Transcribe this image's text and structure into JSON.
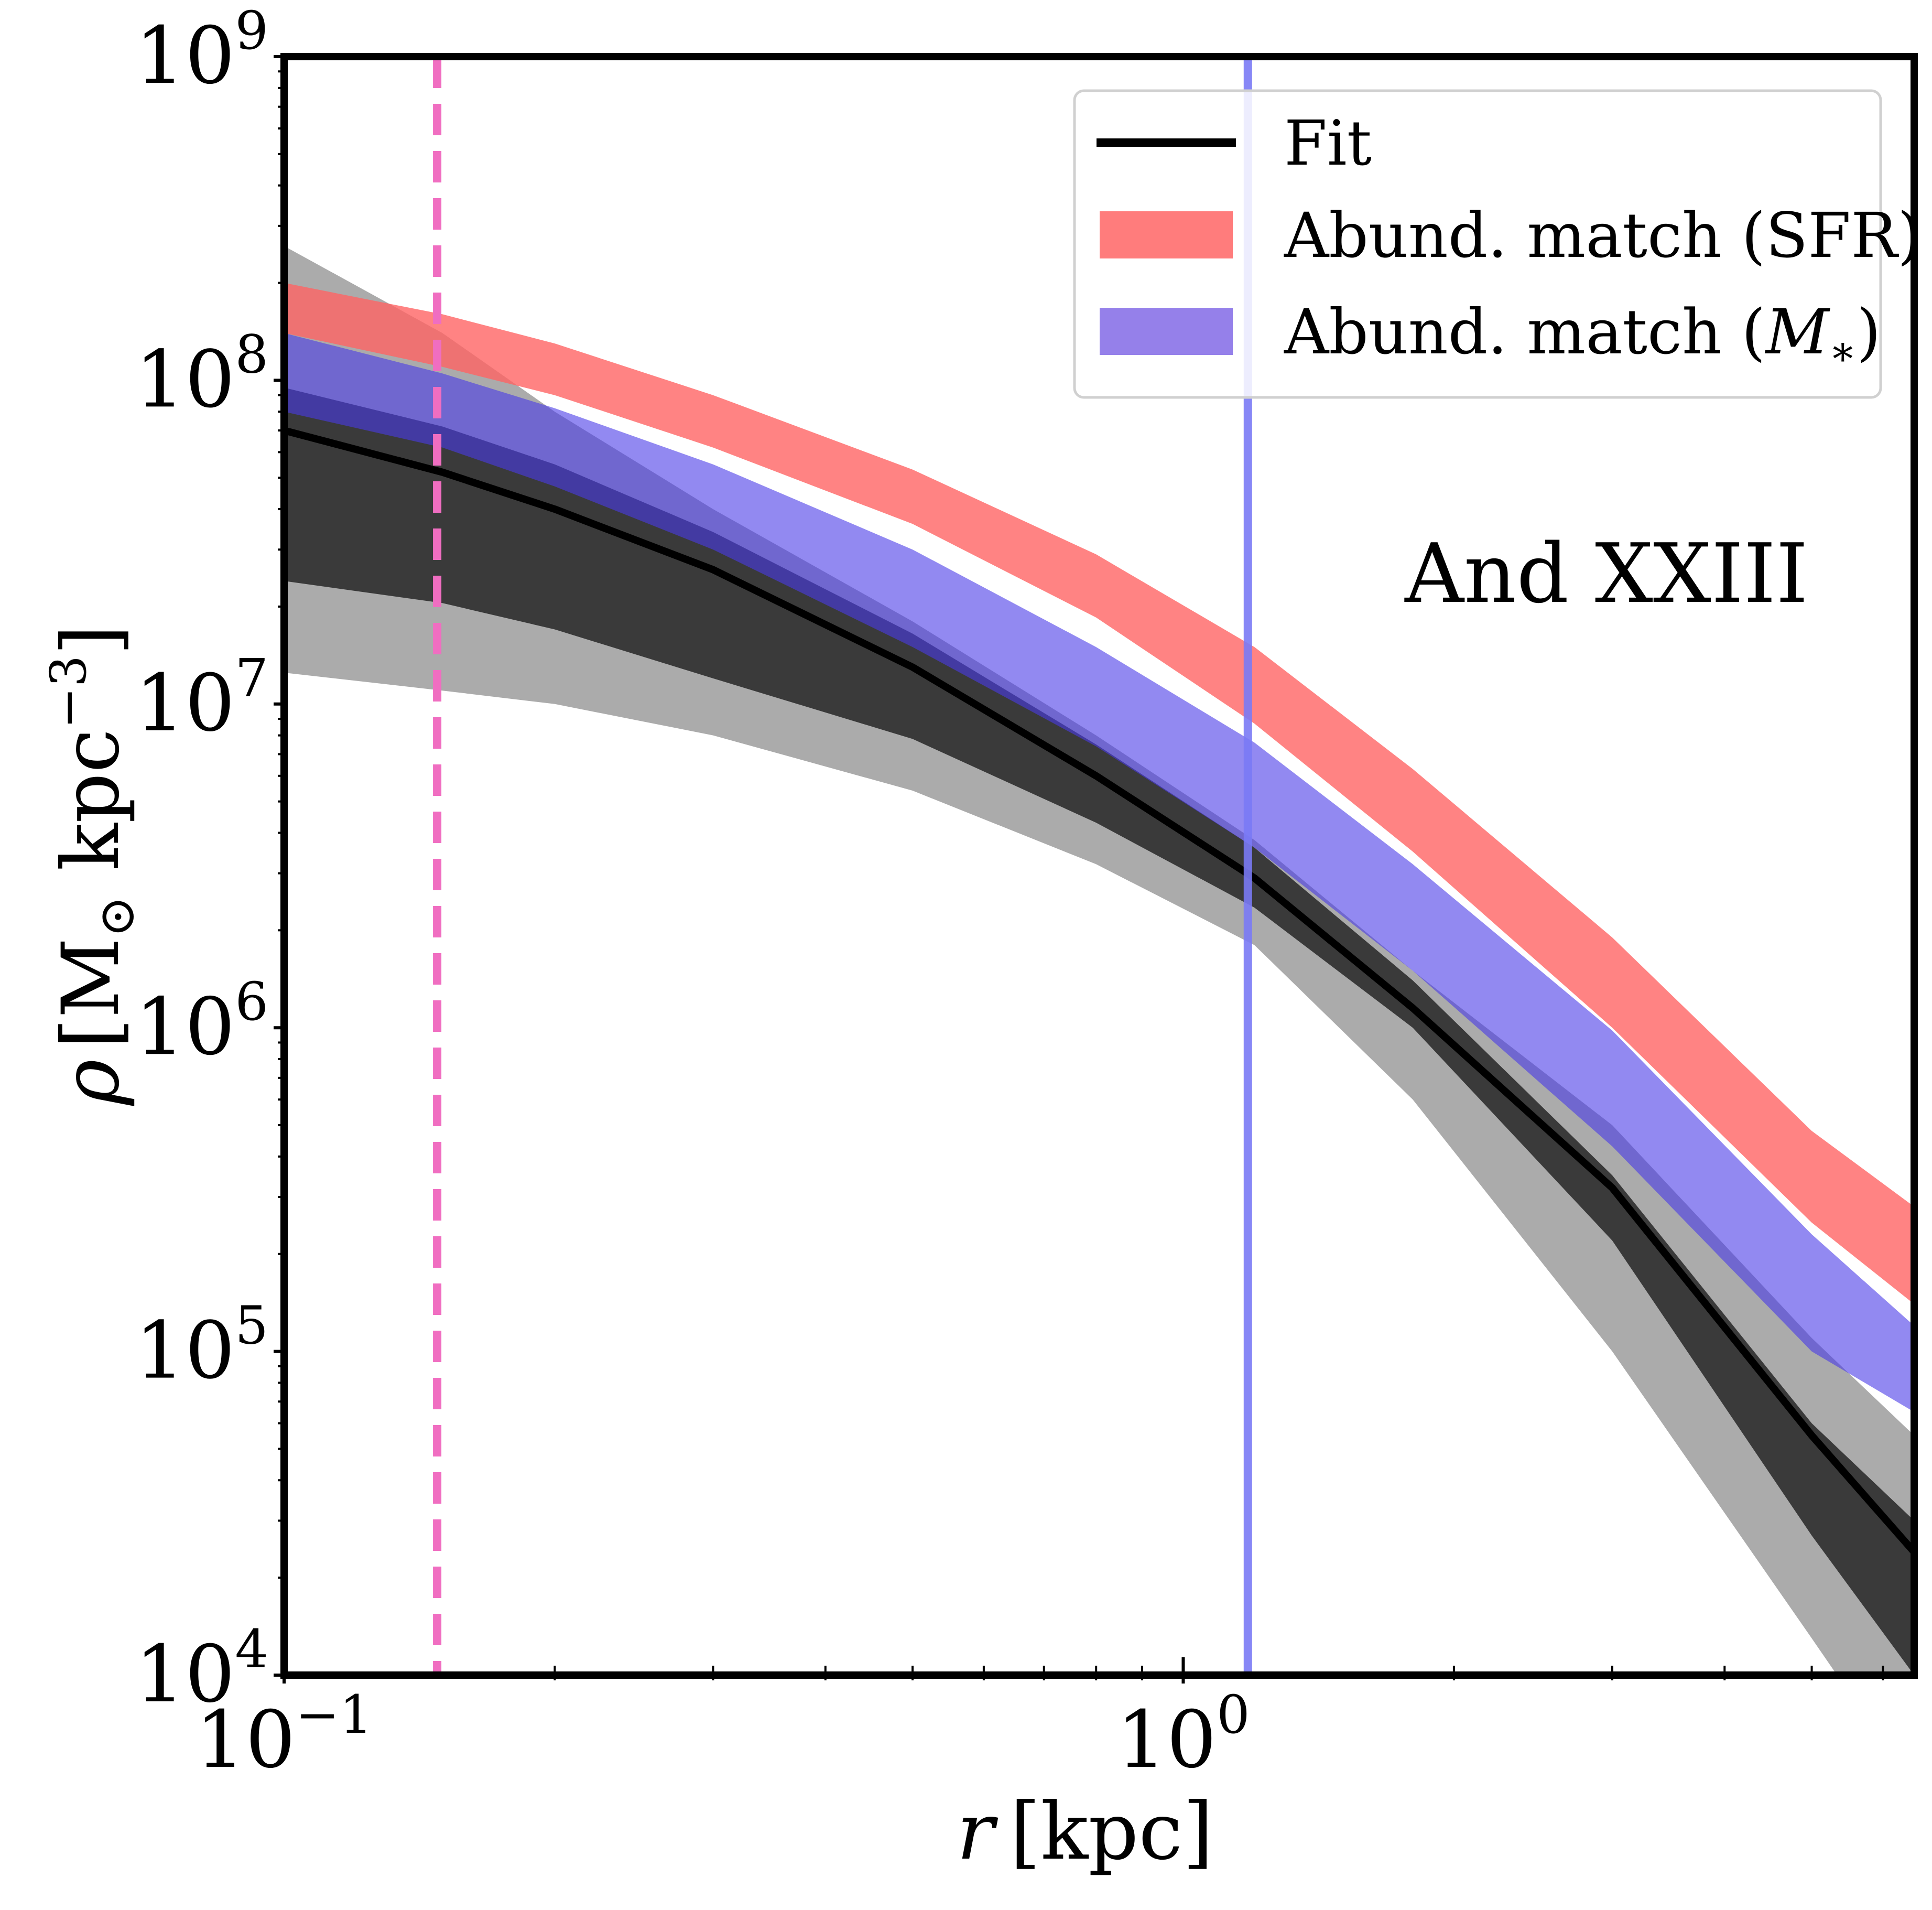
{
  "chart_data": {
    "type": "line",
    "annotation": "And XXIII",
    "xlabel": {
      "main": "r",
      "unit": "[kpc]"
    },
    "ylabel": {
      "main": "ρ",
      "unit": "[M",
      "unit_sub": "⊙",
      "unit_mid": " kpc",
      "unit_sup": "−3",
      "unit_end": "]"
    },
    "x_scale": "log",
    "y_scale": "log",
    "xlim": [
      0.1,
      6.5
    ],
    "ylim": [
      10000,
      1000000000
    ],
    "x_ticks": [
      {
        "value": 0.1,
        "base": "10",
        "exp": "−1"
      },
      {
        "value": 1,
        "base": "10",
        "exp": "0"
      }
    ],
    "y_ticks": [
      {
        "value": 10000,
        "base": "10",
        "exp": "4"
      },
      {
        "value": 100000,
        "base": "10",
        "exp": "5"
      },
      {
        "value": 1000000,
        "base": "10",
        "exp": "6"
      },
      {
        "value": 10000000,
        "base": "10",
        "exp": "7"
      },
      {
        "value": 100000000,
        "base": "10",
        "exp": "8"
      },
      {
        "value": 1000000000,
        "base": "10",
        "exp": "9"
      }
    ],
    "vertical_lines": [
      {
        "x": 0.148,
        "style": "dashed",
        "color": "#f06ec1"
      },
      {
        "x": 1.18,
        "style": "solid",
        "color": "#7a7af5"
      }
    ],
    "bands": [
      {
        "name": "fit-2sigma",
        "color": "#ababab",
        "x": [
          0.1,
          0.15,
          0.2,
          0.3,
          0.5,
          0.8,
          1.2,
          1.8,
          3,
          5,
          6.5
        ],
        "lower": [
          12500000,
          11000000,
          10000000,
          8000000,
          5400000,
          3200000,
          1800000,
          600000,
          100000,
          13000,
          4500
        ],
        "upper": [
          260000000,
          140000000,
          80000000,
          40000000,
          18000000,
          8000000,
          3800000,
          1500000,
          500000,
          110000,
          55000
        ]
      },
      {
        "name": "fit-1sigma",
        "color": "#3a3a3a",
        "x": [
          0.1,
          0.15,
          0.2,
          0.3,
          0.5,
          0.8,
          1.2,
          1.8,
          3,
          5,
          6.5
        ],
        "lower": [
          24000000,
          20500000,
          17000000,
          12000000,
          7800000,
          4300000,
          2350000,
          1000000,
          220000,
          27000,
          10000
        ],
        "upper": [
          95000000,
          72000000,
          55000000,
          34000000,
          16500000,
          7500000,
          3600000,
          1400000,
          350000,
          60000,
          30000
        ]
      },
      {
        "name": "Abund. match (SFR)",
        "color": "#ff6464",
        "opacity": 0.8,
        "x": [
          0.1,
          0.15,
          0.2,
          0.3,
          0.5,
          0.8,
          1.2,
          1.8,
          3,
          5,
          6.5
        ],
        "lower": [
          140000000,
          110000000,
          90000000,
          62000000,
          36000000,
          18500000,
          8700000,
          3500000,
          1000000,
          250000,
          140000
        ],
        "upper": [
          200000000,
          160000000,
          130000000,
          90000000,
          53000000,
          29000000,
          15000000,
          6300000,
          1900000,
          480000,
          280000
        ]
      },
      {
        "name": "Abund. match (M*)",
        "color": "#4a3ae8",
        "opacity": 0.6,
        "x": [
          0.1,
          0.15,
          0.2,
          0.3,
          0.5,
          0.8,
          1.2,
          1.8,
          3,
          5,
          6.5
        ],
        "lower": [
          80000000,
          62000000,
          47000000,
          30000000,
          15000000,
          7400000,
          3600000,
          1500000,
          430000,
          100000,
          65000
        ],
        "upper": [
          140000000,
          105000000,
          82000000,
          55000000,
          30000000,
          15000000,
          7600000,
          3200000,
          980000,
          230000,
          120000
        ]
      }
    ],
    "series": [
      {
        "name": "Fit",
        "color": "#000000",
        "x": [
          0.1,
          0.15,
          0.2,
          0.3,
          0.5,
          0.8,
          1.2,
          1.8,
          3,
          5,
          6.5
        ],
        "y": [
          70000000,
          52000000,
          40000000,
          26000000,
          13000000,
          6000000,
          2900000,
          1150000,
          320000,
          55000,
          24000
        ]
      }
    ],
    "legend": {
      "placement": "top-right",
      "items": [
        {
          "label": "Fit",
          "kind": "line",
          "color": "#000000"
        },
        {
          "label": "Abund. match (SFR)",
          "kind": "patch",
          "color": "#ff7c7c"
        },
        {
          "label": "Abund. match (",
          "label_math": "M",
          "label_sub": "∗",
          "label_end": ")",
          "kind": "patch",
          "color": "#9580ea"
        }
      ]
    }
  }
}
